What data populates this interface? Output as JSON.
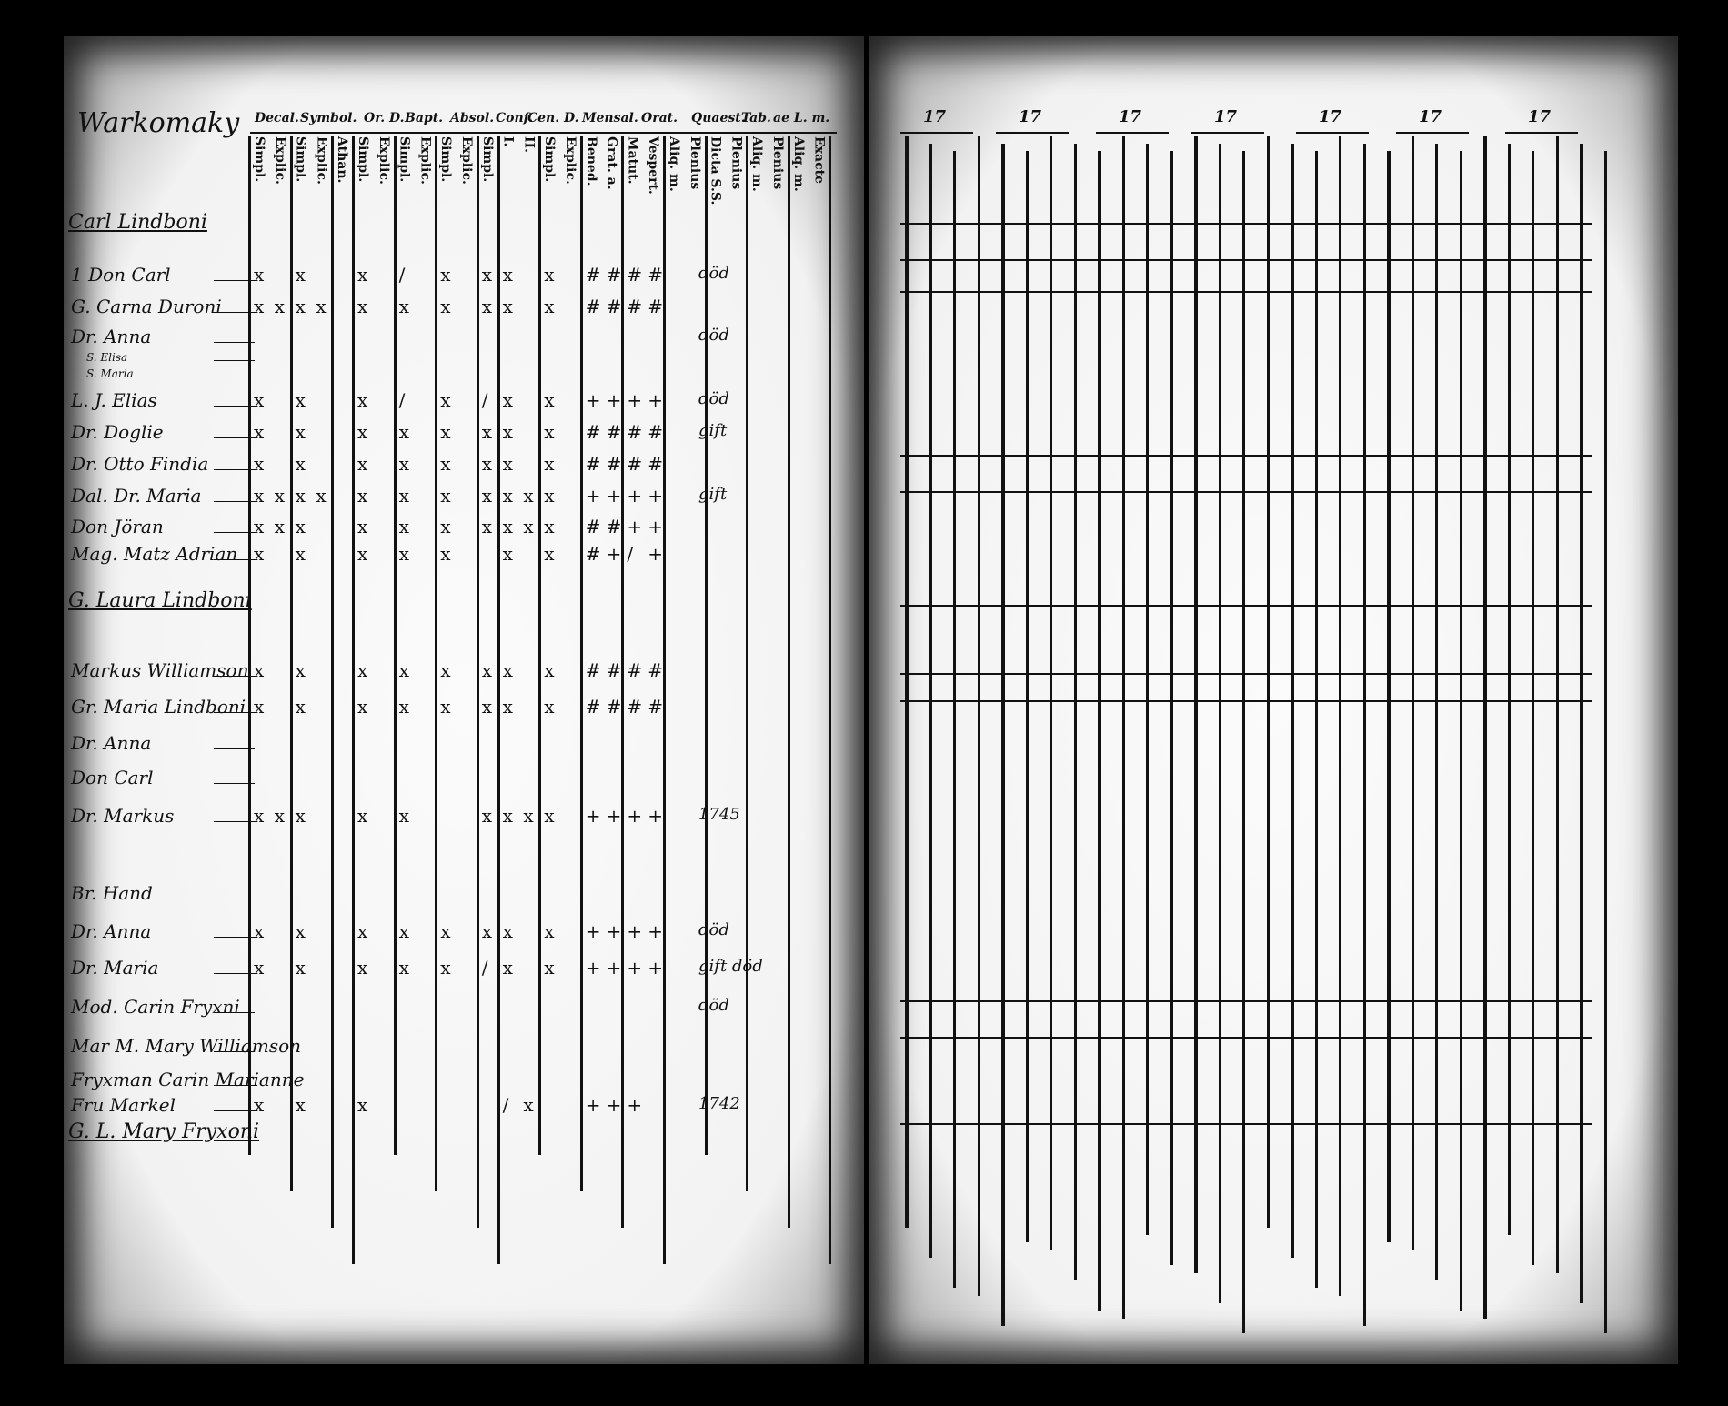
{
  "left_page": {
    "title": "Warkomaky",
    "group_headers": [
      "Decal.",
      "Symbol.",
      "Or. D.",
      "Bapt.",
      "Absol.",
      "Conf.",
      "Cen. D.",
      "Mensal.",
      "Orat.",
      "Quaest.",
      "Tab.",
      "ae L. m."
    ],
    "column_headers": [
      "Simpl.",
      "Explic.",
      "Simpl.",
      "Explic.",
      "Athan.",
      "Simpl.",
      "Explic.",
      "Simpl.",
      "Explic.",
      "Simpl.",
      "Explic.",
      "Simpl.",
      "I.",
      "II.",
      "Simpl.",
      "Explic.",
      "Bened.",
      "Grat. a.",
      "Matut.",
      "Vespert.",
      "Aliq. m.",
      "Plenius",
      "Dicta S.S.",
      "Plenius",
      "Aliq. m.",
      "Plenius",
      "Aliq. m.",
      "Exacte"
    ],
    "sections": [
      "Carl Lindboni",
      "G. Laura Lindboni",
      "G. L. Mary Fryxoni"
    ],
    "rows": [
      {
        "name": "1 Don Carl",
        "marks": [
          "x",
          null,
          "x",
          null,
          null,
          "x",
          null,
          "/",
          null,
          "x",
          null,
          "x",
          "x",
          null,
          "x",
          null,
          "#",
          "#",
          "#",
          "#"
        ],
        "note": "död"
      },
      {
        "name": "G. Carna Duroni",
        "marks": [
          "x",
          "x",
          "x",
          "x",
          null,
          "x",
          null,
          "x",
          null,
          "x",
          null,
          "x",
          "x",
          null,
          "x",
          null,
          "#",
          "#",
          "#",
          "#"
        ]
      },
      {
        "name": "Dr. Anna",
        "note": "död"
      },
      {
        "name": "S. Elisa"
      },
      {
        "name": "S. Maria"
      },
      {
        "name": "L. J. Elias",
        "marks": [
          "x",
          null,
          "x",
          null,
          null,
          "x",
          null,
          "/",
          null,
          "x",
          null,
          "/",
          "x",
          null,
          "x",
          null,
          "+",
          "+",
          "+",
          "+"
        ],
        "note": "död"
      },
      {
        "name": "Dr. Doglie",
        "marks": [
          "x",
          null,
          "x",
          null,
          null,
          "x",
          null,
          "x",
          null,
          "x",
          null,
          "x",
          "x",
          null,
          "x",
          null,
          "#",
          "#",
          "#",
          "#"
        ],
        "note": "gift"
      },
      {
        "name": "Dr. Otto Findia",
        "marks": [
          "x",
          null,
          "x",
          null,
          null,
          "x",
          null,
          "x",
          null,
          "x",
          null,
          "x",
          "x",
          null,
          "x",
          null,
          "#",
          "#",
          "#",
          "#"
        ]
      },
      {
        "name": "Dal. Dr. Maria",
        "marks": [
          "x",
          "x",
          "x",
          "x",
          null,
          "x",
          null,
          "x",
          null,
          "x",
          null,
          "x",
          "x",
          "x",
          "x",
          null,
          "+",
          "+",
          "+",
          "+"
        ],
        "note": "gift"
      },
      {
        "name": "Don Jöran",
        "marks": [
          "x",
          "x",
          "x",
          null,
          null,
          "x",
          null,
          "x",
          null,
          "x",
          null,
          "x",
          "x",
          "x",
          "x",
          null,
          "#",
          "#",
          "+",
          "+"
        ]
      },
      {
        "name": "Mag. Matz Adrian",
        "marks": [
          "x",
          null,
          "x",
          null,
          null,
          "x",
          null,
          "x",
          null,
          "x",
          null,
          null,
          "x",
          null,
          "x",
          null,
          "#",
          "+",
          "/",
          "+"
        ]
      },
      {
        "name": "Markus Williamson",
        "marks": [
          "x",
          null,
          "x",
          null,
          null,
          "x",
          null,
          "x",
          null,
          "x",
          null,
          "x",
          "x",
          null,
          "x",
          null,
          "#",
          "#",
          "#",
          "#"
        ]
      },
      {
        "name": "Gr. Maria Lindboni",
        "marks": [
          "x",
          null,
          "x",
          null,
          null,
          "x",
          null,
          "x",
          null,
          "x",
          null,
          "x",
          "x",
          null,
          "x",
          null,
          "#",
          "#",
          "#",
          "#"
        ]
      },
      {
        "name": "Dr. Anna"
      },
      {
        "name": "Don Carl"
      },
      {
        "name": "Dr. Markus",
        "marks": [
          "x",
          "x",
          "x",
          null,
          null,
          "x",
          null,
          "x",
          null,
          null,
          null,
          "x",
          "x",
          "x",
          "x",
          null,
          "+",
          "+",
          "+",
          "+"
        ],
        "note": "1745"
      },
      {
        "name": "Br. Hand"
      },
      {
        "name": "Dr. Anna",
        "marks": [
          "x",
          null,
          "x",
          null,
          null,
          "x",
          null,
          "x",
          null,
          "x",
          null,
          "x",
          "x",
          null,
          "x",
          null,
          "+",
          "+",
          "+",
          "+"
        ],
        "note": "död"
      },
      {
        "name": "Dr. Maria",
        "marks": [
          "x",
          null,
          "x",
          null,
          null,
          "x",
          null,
          "x",
          null,
          "x",
          null,
          "/",
          "x",
          null,
          "x",
          null,
          "+",
          "+",
          "+",
          "+"
        ],
        "note": "gift död"
      },
      {
        "name": "Mod. Carin Fryxni",
        "note": "död"
      },
      {
        "name": "Mar M. Mary Williamson"
      },
      {
        "name": "Fryxman Carin Marianne"
      },
      {
        "name": "Fru Markel",
        "marks": [
          "x",
          null,
          "x",
          null,
          null,
          "x",
          null,
          null,
          null,
          null,
          null,
          null,
          "/",
          "x",
          null,
          null,
          "+",
          "+",
          "+",
          null
        ],
        "note": "1742"
      }
    ]
  },
  "right_page": {
    "year_headers": [
      "17",
      "17",
      "17",
      "17",
      "17",
      "17",
      "17"
    ]
  }
}
